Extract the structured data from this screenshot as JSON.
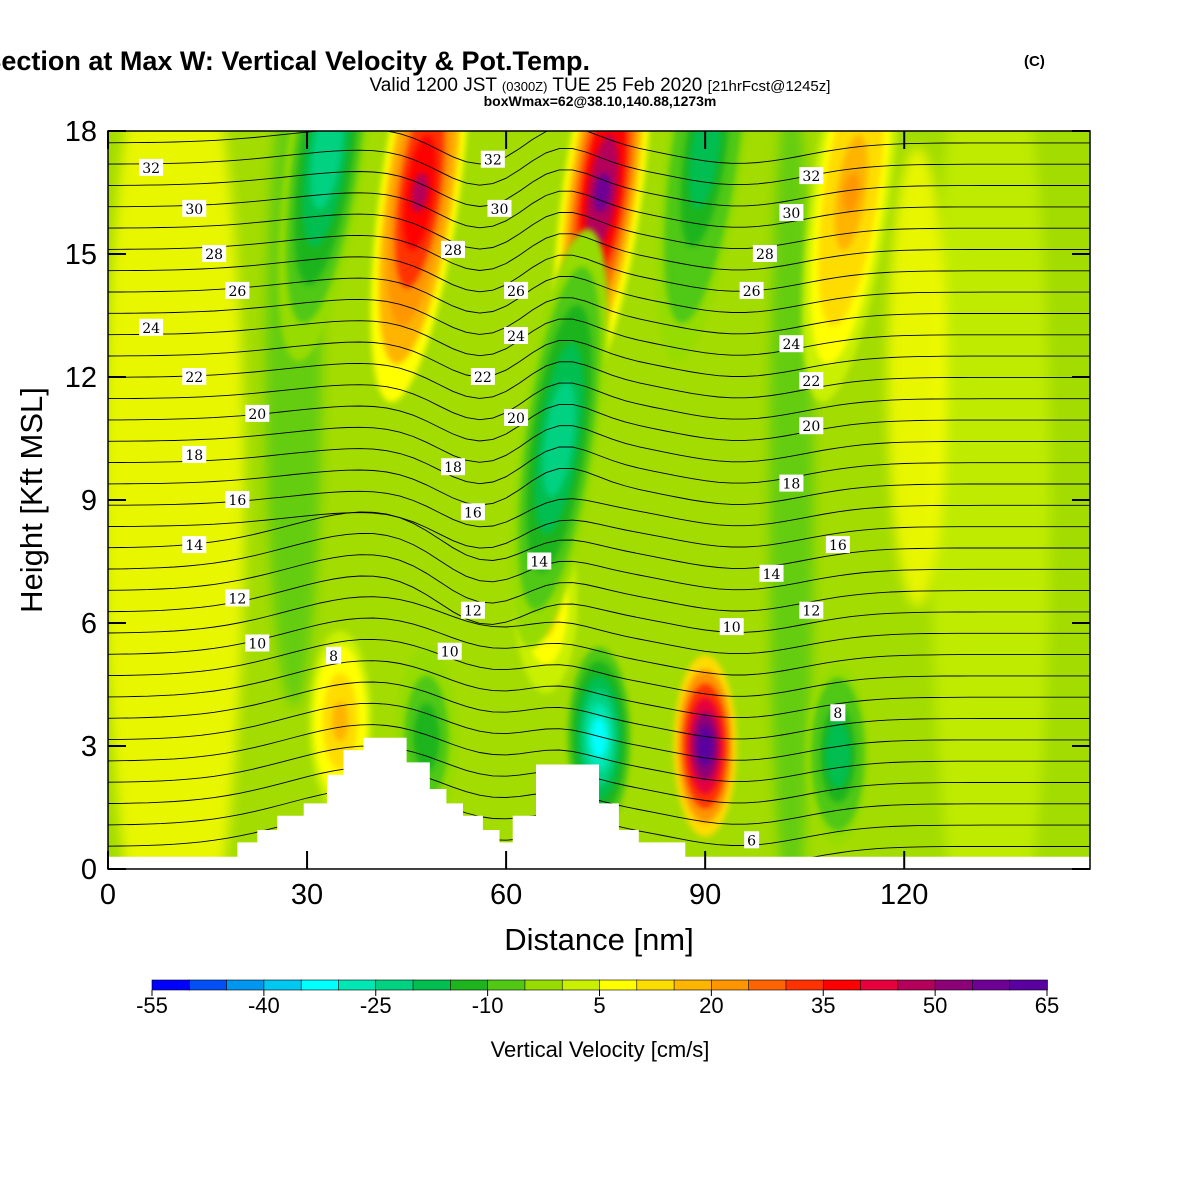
{
  "header": {
    "title": "Wind-Parallel Section at Max W: Vertical Velocity & Pot.Temp.",
    "title_mark": "(C)",
    "valid_prefix": "Valid 1200 JST",
    "valid_utc": "(0300Z)",
    "valid_date": "TUE 25 Feb 2020",
    "forecast": "[21hrFcst@1245z]",
    "boxmax": "boxWmax=62@38.10,140.88,1273m"
  },
  "chart_data": {
    "type": "heatmap",
    "xlabel": "Distance [nm]",
    "ylabel": "Height [Kft MSL]",
    "xlim": [
      0,
      148
    ],
    "ylim": [
      0,
      18
    ],
    "x_ticks": [
      0,
      30,
      60,
      90,
      120
    ],
    "y_ticks": [
      0,
      3,
      6,
      9,
      12,
      15,
      18
    ],
    "grid": false,
    "terrain_profile": [
      [
        0,
        0.3
      ],
      [
        19.5,
        0.3
      ],
      [
        19.5,
        0.65
      ],
      [
        22.5,
        0.65
      ],
      [
        22.5,
        0.95
      ],
      [
        25.5,
        0.95
      ],
      [
        25.5,
        1.3
      ],
      [
        29.5,
        1.3
      ],
      [
        29.5,
        1.6
      ],
      [
        33,
        1.6
      ],
      [
        33,
        2.3
      ],
      [
        35.5,
        2.3
      ],
      [
        35.5,
        2.9
      ],
      [
        38.5,
        2.9
      ],
      [
        38.5,
        3.2
      ],
      [
        45,
        3.2
      ],
      [
        45,
        2.6
      ],
      [
        48.5,
        2.6
      ],
      [
        48.5,
        1.95
      ],
      [
        51,
        1.95
      ],
      [
        51,
        1.6
      ],
      [
        53.5,
        1.6
      ],
      [
        53.5,
        1.3
      ],
      [
        56.5,
        1.3
      ],
      [
        56.5,
        0.95
      ],
      [
        59,
        0.95
      ],
      [
        59,
        0.65
      ],
      [
        61,
        0.65
      ],
      [
        61,
        1.3
      ],
      [
        64.5,
        1.3
      ],
      [
        64.5,
        2.55
      ],
      [
        74,
        2.55
      ],
      [
        74,
        1.6
      ],
      [
        77,
        1.6
      ],
      [
        77,
        0.95
      ],
      [
        80,
        0.95
      ],
      [
        80,
        0.65
      ],
      [
        87,
        0.65
      ],
      [
        87,
        0.3
      ],
      [
        148,
        0.3
      ]
    ],
    "vertical_velocity_features": [
      {
        "type": "updraft",
        "x": 47,
        "y": 16.5,
        "w_cm_s": 45
      },
      {
        "type": "updraft",
        "x": 74.5,
        "y": 16.5,
        "w_cm_s": 55
      },
      {
        "type": "updraft",
        "x": 90,
        "y": 3.0,
        "w_cm_s": 62
      },
      {
        "type": "updraft",
        "x": 35,
        "y": 3.6,
        "w_cm_s": 15
      },
      {
        "type": "updraft",
        "x": 112,
        "y": 16.5,
        "w_cm_s": 20
      },
      {
        "type": "updraft",
        "x": 66,
        "y": 6.5,
        "w_cm_s": 12
      },
      {
        "type": "downdraft",
        "x": 33,
        "y": 17.5,
        "w_cm_s": -25
      },
      {
        "type": "downdraft",
        "x": 68,
        "y": 10.5,
        "w_cm_s": -25
      },
      {
        "type": "downdraft",
        "x": 74,
        "y": 3.2,
        "w_cm_s": -35
      },
      {
        "type": "downdraft",
        "x": 90,
        "y": 17.5,
        "w_cm_s": -20
      },
      {
        "type": "downdraft",
        "x": 110,
        "y": 2.8,
        "w_cm_s": -20
      },
      {
        "type": "downdraft",
        "x": 48,
        "y": 3.2,
        "w_cm_s": -15
      }
    ],
    "potential_temperature_labels": [
      {
        "v": "32",
        "x": 6.5,
        "y": 17.1
      },
      {
        "v": "30",
        "x": 13,
        "y": 16.1
      },
      {
        "v": "28",
        "x": 16,
        "y": 15.0
      },
      {
        "v": "26",
        "x": 19.5,
        "y": 14.1
      },
      {
        "v": "24",
        "x": 6.5,
        "y": 13.2
      },
      {
        "v": "22",
        "x": 13,
        "y": 12.0
      },
      {
        "v": "20",
        "x": 22.5,
        "y": 11.1
      },
      {
        "v": "18",
        "x": 13,
        "y": 10.1
      },
      {
        "v": "16",
        "x": 19.5,
        "y": 9.0
      },
      {
        "v": "14",
        "x": 13,
        "y": 7.9
      },
      {
        "v": "12",
        "x": 19.5,
        "y": 6.6
      },
      {
        "v": "10",
        "x": 22.5,
        "y": 5.5
      },
      {
        "v": "8",
        "x": 34,
        "y": 5.2
      },
      {
        "v": "32",
        "x": 58,
        "y": 17.3
      },
      {
        "v": "30",
        "x": 59,
        "y": 16.1
      },
      {
        "v": "28",
        "x": 52,
        "y": 15.1
      },
      {
        "v": "26",
        "x": 61.5,
        "y": 14.1
      },
      {
        "v": "24",
        "x": 61.5,
        "y": 13.0
      },
      {
        "v": "22",
        "x": 56.5,
        "y": 12.0
      },
      {
        "v": "20",
        "x": 61.5,
        "y": 11.0
      },
      {
        "v": "18",
        "x": 52,
        "y": 9.8
      },
      {
        "v": "16",
        "x": 55,
        "y": 8.7
      },
      {
        "v": "14",
        "x": 65,
        "y": 7.5
      },
      {
        "v": "12",
        "x": 55,
        "y": 6.3
      },
      {
        "v": "10",
        "x": 51.5,
        "y": 5.3
      },
      {
        "v": "32",
        "x": 106,
        "y": 16.9
      },
      {
        "v": "30",
        "x": 103,
        "y": 16.0
      },
      {
        "v": "28",
        "x": 99,
        "y": 15.0
      },
      {
        "v": "26",
        "x": 97,
        "y": 14.1
      },
      {
        "v": "24",
        "x": 103,
        "y": 12.8
      },
      {
        "v": "22",
        "x": 106,
        "y": 11.9
      },
      {
        "v": "20",
        "x": 106,
        "y": 10.8
      },
      {
        "v": "18",
        "x": 103,
        "y": 9.4
      },
      {
        "v": "16",
        "x": 110,
        "y": 7.9
      },
      {
        "v": "14",
        "x": 100,
        "y": 7.2
      },
      {
        "v": "12",
        "x": 106,
        "y": 6.3
      },
      {
        "v": "10",
        "x": 94,
        "y": 5.9
      },
      {
        "v": "8",
        "x": 110,
        "y": 3.8
      },
      {
        "v": "6",
        "x": 97,
        "y": 0.7
      }
    ]
  },
  "colorbar": {
    "title": "Vertical Velocity [cm/s]",
    "labels": [
      "-55",
      "-40",
      "-25",
      "-10",
      "5",
      "20",
      "35",
      "50",
      "65"
    ],
    "colors": [
      "#0000ff",
      "#0050f5",
      "#0096f0",
      "#00c8f0",
      "#00ffff",
      "#00e6b4",
      "#00d282",
      "#00be50",
      "#1eb41e",
      "#50c814",
      "#96dc00",
      "#c8f000",
      "#ffff00",
      "#ffdc00",
      "#ffb400",
      "#ff9600",
      "#ff6400",
      "#ff3200",
      "#ff0000",
      "#e6003c",
      "#b4005a",
      "#8c0078",
      "#6e0096",
      "#5a00a0"
    ]
  }
}
